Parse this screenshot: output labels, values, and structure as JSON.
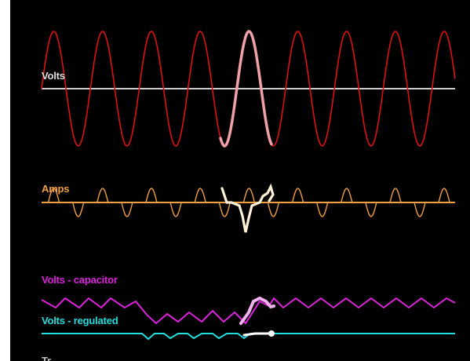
{
  "window": {
    "background_color": "#000000",
    "frame_color": "#ffffff"
  },
  "traces": {
    "volts": {
      "label": "Volts",
      "label_color": "#dddddd",
      "wave_color": "#dd1111",
      "highlight_color": "#f2a0a8",
      "baseline_color": "#cccccc",
      "icon": "sine-wave-icon"
    },
    "amps": {
      "label": "Amps",
      "label_color": "#f0a040",
      "wave_color": "#f0a040",
      "highlight_color": "#fff0d8",
      "icon": "pulse-wave-icon"
    },
    "volts_capacitor": {
      "label": "Volts - capacitor",
      "label_color": "#dd22dd",
      "wave_color": "#dd22dd",
      "highlight_color": "#f4b0f0",
      "icon": "sawtooth-wave-icon"
    },
    "volts_regulated": {
      "label": "Volts - regulated",
      "label_color": "#22dddd",
      "wave_color": "#22dddd",
      "highlight_color": "#ffffff",
      "icon": "flat-line-icon"
    }
  },
  "cut_off_label": {
    "label": "Tr..."
  }
}
